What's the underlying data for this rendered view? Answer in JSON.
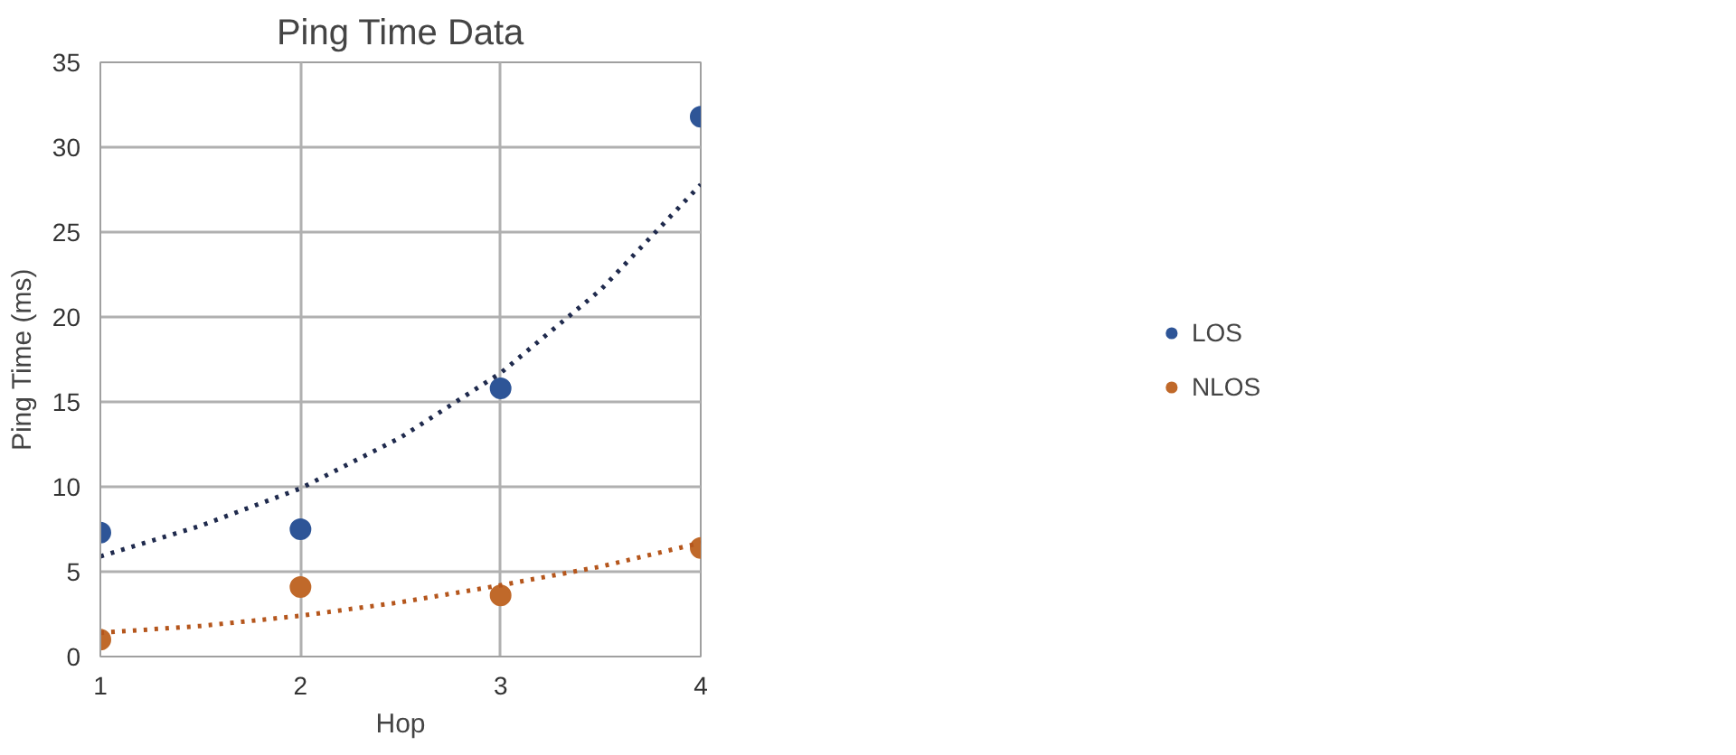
{
  "chart_data": {
    "type": "scatter",
    "title": "Ping Time Data",
    "xlabel": "Hop",
    "ylabel": "Ping Time (ms)",
    "x": [
      1,
      2,
      3,
      4
    ],
    "series": [
      {
        "name": "LOS",
        "color": "#2e5597",
        "values": [
          7.3,
          7.5,
          15.8,
          31.8
        ]
      },
      {
        "name": "NLOS",
        "color": "#c0692a",
        "values": [
          1.0,
          4.1,
          3.6,
          6.4
        ]
      },
      {
        "type": "line",
        "line_style": "dotted",
        "marker": "none",
        "color": "#1f2a4d",
        "x": [
          1,
          1.5,
          2,
          2.5,
          3,
          3.5,
          4
        ],
        "values": [
          5.9,
          7.7,
          9.9,
          12.9,
          16.7,
          21.6,
          27.8
        ]
      },
      {
        "type": "line",
        "line_style": "dotted",
        "marker": "none",
        "color": "#b5561c",
        "x": [
          1,
          1.5,
          2,
          2.5,
          3,
          3.5,
          4
        ],
        "values": [
          1.4,
          1.8,
          2.4,
          3.2,
          4.2,
          5.3,
          6.7
        ]
      }
    ],
    "xlim": [
      1,
      4
    ],
    "xticks": [
      1,
      2,
      3,
      4
    ],
    "ylim": [
      0,
      35
    ],
    "yticks": [
      0,
      5,
      10,
      15,
      20,
      25,
      30,
      35
    ],
    "grid": true,
    "legend": "right",
    "marker": "circle"
  }
}
